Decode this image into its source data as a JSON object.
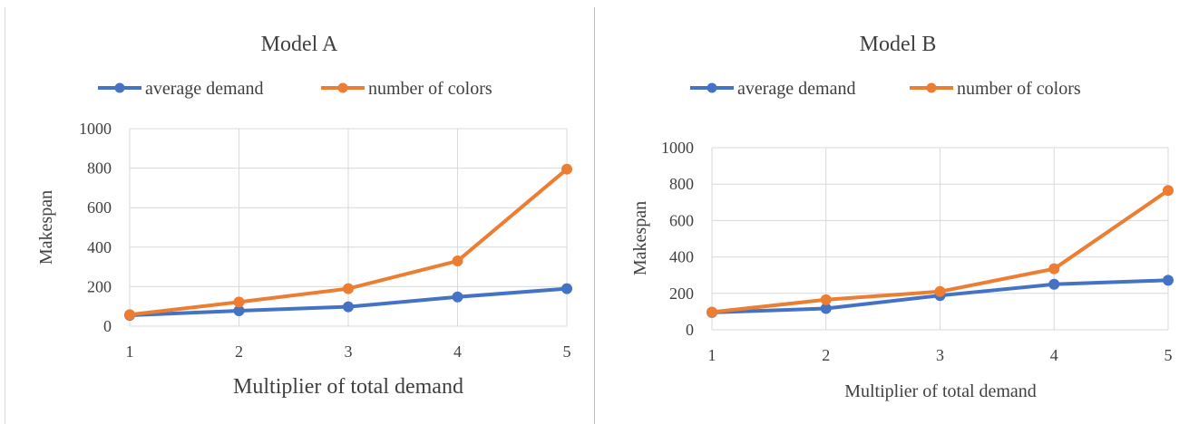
{
  "chart_data": [
    {
      "type": "line",
      "title": "Model A",
      "xlabel": "Multiplier of total demand",
      "ylabel": "Makespan",
      "x": [
        1,
        2,
        3,
        4,
        5
      ],
      "ylim": [
        0,
        1000
      ],
      "yticks": [
        0,
        200,
        400,
        600,
        800,
        1000
      ],
      "grid": true,
      "legend": "top",
      "series": [
        {
          "name": "average demand",
          "color": "#4472C4",
          "values": [
            55,
            78,
            98,
            148,
            190
          ]
        },
        {
          "name": "number of colors",
          "color": "#ED7D31",
          "values": [
            58,
            122,
            190,
            330,
            795
          ]
        }
      ]
    },
    {
      "type": "line",
      "title": "Model B",
      "xlabel": "Multiplier of total demand",
      "ylabel": "Makespan",
      "x": [
        1,
        2,
        3,
        4,
        5
      ],
      "ylim": [
        0,
        1000
      ],
      "yticks": [
        0,
        200,
        400,
        600,
        800,
        1000
      ],
      "grid": true,
      "legend": "top",
      "series": [
        {
          "name": "average demand",
          "color": "#4472C4",
          "values": [
            95,
            117,
            188,
            250,
            272
          ]
        },
        {
          "name": "number of colors",
          "color": "#ED7D31",
          "values": [
            97,
            165,
            210,
            335,
            765
          ]
        }
      ]
    }
  ]
}
